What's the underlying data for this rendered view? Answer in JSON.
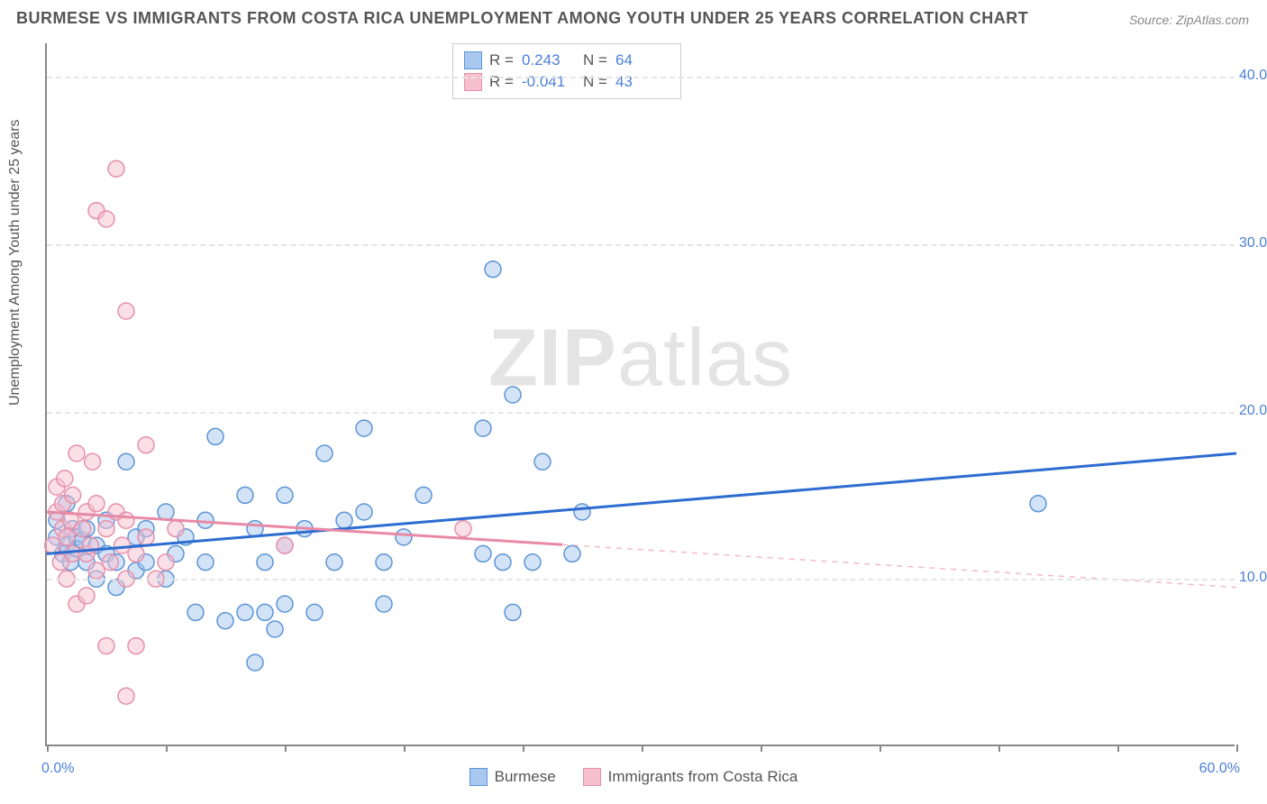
{
  "title": "BURMESE VS IMMIGRANTS FROM COSTA RICA UNEMPLOYMENT AMONG YOUTH UNDER 25 YEARS CORRELATION CHART",
  "source": "Source: ZipAtlas.com",
  "ylabel": "Unemployment Among Youth under 25 years",
  "watermark_bold": "ZIP",
  "watermark_rest": "atlas",
  "chart": {
    "type": "scatter",
    "background_color": "#ffffff",
    "grid_color": "#e5e5e5",
    "axis_color": "#888888",
    "xlim": [
      0,
      60
    ],
    "ylim": [
      0,
      42
    ],
    "xtick_positions": [
      0,
      6,
      12,
      18,
      24,
      30,
      36,
      42,
      48,
      54,
      60
    ],
    "xtick_labels": {
      "min": "0.0%",
      "max": "60.0%"
    },
    "ytick_positions": [
      10,
      20,
      30,
      40
    ],
    "ytick_labels": [
      "10.0%",
      "20.0%",
      "30.0%",
      "40.0%"
    ],
    "marker_radius": 9,
    "marker_opacity": 0.5,
    "line_width": 3,
    "label_fontsize": 16,
    "title_fontsize": 18
  },
  "series": [
    {
      "name": "Burmese",
      "color_fill": "#a8c8ef",
      "color_stroke": "#5c94d6",
      "line_color": "#2d6cd0",
      "R": "0.243",
      "N": "64",
      "regression": {
        "x1": 0,
        "y1": 11.5,
        "x2": 60,
        "y2": 17.5,
        "solid_until_x": 60
      },
      "points": [
        [
          0.5,
          12.5
        ],
        [
          0.5,
          13.5
        ],
        [
          0.8,
          11.5
        ],
        [
          1.0,
          12.0
        ],
        [
          1.0,
          14.5
        ],
        [
          1.2,
          11.0
        ],
        [
          1.3,
          13.0
        ],
        [
          1.5,
          12.5
        ],
        [
          1.5,
          11.8
        ],
        [
          1.8,
          12.3
        ],
        [
          2.0,
          11.0
        ],
        [
          2.0,
          13.0
        ],
        [
          2.5,
          12.0
        ],
        [
          2.5,
          10.0
        ],
        [
          3.0,
          11.5
        ],
        [
          3.0,
          13.5
        ],
        [
          3.5,
          11.0
        ],
        [
          3.5,
          9.5
        ],
        [
          4.0,
          17.0
        ],
        [
          4.5,
          10.5
        ],
        [
          4.5,
          12.5
        ],
        [
          5.0,
          13.0
        ],
        [
          5.0,
          11.0
        ],
        [
          6.0,
          10.0
        ],
        [
          6.0,
          14.0
        ],
        [
          6.5,
          11.5
        ],
        [
          7.0,
          12.5
        ],
        [
          7.5,
          8.0
        ],
        [
          8.0,
          11.0
        ],
        [
          8.0,
          13.5
        ],
        [
          8.5,
          18.5
        ],
        [
          9.0,
          7.5
        ],
        [
          10.0,
          15.0
        ],
        [
          10.0,
          8.0
        ],
        [
          10.5,
          13.0
        ],
        [
          10.5,
          5.0
        ],
        [
          11.0,
          8.0
        ],
        [
          11.0,
          11.0
        ],
        [
          11.5,
          7.0
        ],
        [
          12.0,
          12.0
        ],
        [
          12.0,
          15.0
        ],
        [
          12.0,
          8.5
        ],
        [
          13.0,
          13.0
        ],
        [
          13.5,
          8.0
        ],
        [
          14.0,
          17.5
        ],
        [
          14.5,
          11.0
        ],
        [
          15.0,
          13.5
        ],
        [
          16.0,
          14.0
        ],
        [
          16.0,
          19.0
        ],
        [
          17.0,
          11.0
        ],
        [
          17.0,
          8.5
        ],
        [
          18.0,
          12.5
        ],
        [
          19.0,
          15.0
        ],
        [
          22.0,
          19.0
        ],
        [
          22.5,
          28.5
        ],
        [
          23.0,
          11.0
        ],
        [
          23.5,
          21.0
        ],
        [
          23.5,
          8.0
        ],
        [
          24.5,
          11.0
        ],
        [
          25.0,
          17.0
        ],
        [
          26.5,
          11.5
        ],
        [
          27.0,
          14.0
        ],
        [
          50.0,
          14.5
        ],
        [
          22.0,
          11.5
        ]
      ]
    },
    {
      "name": "Immigrants from Costa Rica",
      "color_fill": "#f6c0cf",
      "color_stroke": "#e690ab",
      "line_color": "#e88aa6",
      "R": "-0.041",
      "N": "43",
      "regression": {
        "x1": 0,
        "y1": 14.0,
        "x2": 60,
        "y2": 9.5,
        "solid_until_x": 26
      },
      "points": [
        [
          0.3,
          12.0
        ],
        [
          0.5,
          14.0
        ],
        [
          0.5,
          15.5
        ],
        [
          0.7,
          11.0
        ],
        [
          0.8,
          13.0
        ],
        [
          0.8,
          14.5
        ],
        [
          0.9,
          16.0
        ],
        [
          1.0,
          12.5
        ],
        [
          1.0,
          10.0
        ],
        [
          1.2,
          13.5
        ],
        [
          1.3,
          11.5
        ],
        [
          1.3,
          15.0
        ],
        [
          1.5,
          17.5
        ],
        [
          1.5,
          8.5
        ],
        [
          1.8,
          13.0
        ],
        [
          2.0,
          11.5
        ],
        [
          2.0,
          14.0
        ],
        [
          2.0,
          9.0
        ],
        [
          2.2,
          12.0
        ],
        [
          2.3,
          17.0
        ],
        [
          2.5,
          10.5
        ],
        [
          2.5,
          14.5
        ],
        [
          2.5,
          32.0
        ],
        [
          3.0,
          6.0
        ],
        [
          3.0,
          13.0
        ],
        [
          3.0,
          31.5
        ],
        [
          3.2,
          11.0
        ],
        [
          3.5,
          14.0
        ],
        [
          3.5,
          34.5
        ],
        [
          3.8,
          12.0
        ],
        [
          4.0,
          3.0
        ],
        [
          4.0,
          10.0
        ],
        [
          4.0,
          13.5
        ],
        [
          4.0,
          26.0
        ],
        [
          4.5,
          11.5
        ],
        [
          5.0,
          12.5
        ],
        [
          5.0,
          18.0
        ],
        [
          5.5,
          10.0
        ],
        [
          6.0,
          11.0
        ],
        [
          6.5,
          13.0
        ],
        [
          12.0,
          12.0
        ],
        [
          21.0,
          13.0
        ],
        [
          4.5,
          6.0
        ]
      ]
    }
  ],
  "legend_bottom": [
    {
      "label": "Burmese",
      "fill": "#a8c8ef",
      "stroke": "#5c94d6"
    },
    {
      "label": "Immigrants from Costa Rica",
      "fill": "#f6c0cf",
      "stroke": "#e690ab"
    }
  ],
  "legend_top_labels": {
    "R": "R =",
    "N": "N ="
  }
}
